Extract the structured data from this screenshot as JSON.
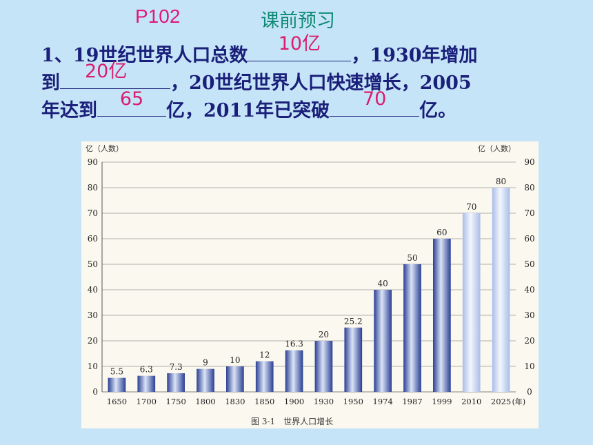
{
  "header": {
    "page_ref": "P102",
    "title": "课前预习"
  },
  "question": {
    "line1_prefix": "1、19世纪世界人口总数",
    "blank1_answer": "10亿",
    "line1_suffix": "，1930年增加",
    "line2_prefix": "到",
    "blank2_answer": "20亿",
    "line2_suffix": "，20世纪世界人口快速增长，2005",
    "line3_prefix": "年达到",
    "blank3_answer": "65",
    "line3_mid": "亿，2011年已突破",
    "blank4_answer": "70",
    "line3_suffix": "亿。"
  },
  "chart_data": {
    "type": "bar",
    "title": "",
    "caption": "图 3-1　世界人口增长",
    "ylabel_left": "亿（人数）",
    "ylabel_right": "亿（人数）",
    "xunit": "(年)",
    "categories": [
      "1650",
      "1700",
      "1750",
      "1800",
      "1830",
      "1850",
      "1900",
      "1930",
      "1950",
      "1974",
      "1987",
      "1999",
      "2010",
      "2025"
    ],
    "values": [
      5.5,
      6.3,
      7.3,
      9,
      10,
      12,
      16.3,
      20,
      25.2,
      40,
      50,
      60,
      70,
      80
    ],
    "value_labels": [
      "5.5",
      "6.3",
      "7.3",
      "9",
      "10",
      "12",
      "16.3",
      "20",
      "25.2",
      "40",
      "50",
      "60",
      "70",
      "80"
    ],
    "yticks": [
      0,
      10,
      20,
      30,
      40,
      50,
      60,
      70,
      80,
      90
    ],
    "ylim": [
      0,
      90
    ],
    "grid": true,
    "colors": {
      "bar": "#3d56a8",
      "projected_bar": "#c9d6f2",
      "grid": "#9a9a9a"
    }
  }
}
